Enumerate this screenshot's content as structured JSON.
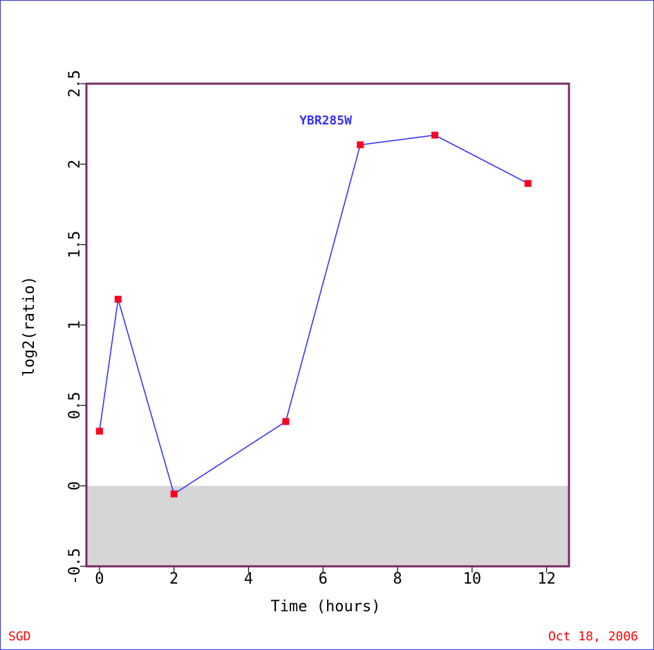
{
  "chart_data": {
    "type": "line",
    "title": "YBR285W",
    "xlabel": "Time (hours)",
    "ylabel": "log2(ratio)",
    "xlim": [
      -0.35,
      12.6
    ],
    "ylim": [
      -0.5,
      2.5
    ],
    "xticks": [
      0,
      2,
      4,
      6,
      8,
      10,
      12
    ],
    "xtick_labels": [
      "0",
      "2",
      "4",
      "6",
      "8",
      "10",
      "12"
    ],
    "yticks": [
      -0.5,
      0,
      0.5,
      1,
      1.5,
      2,
      2.5
    ],
    "ytick_labels": [
      "-0.5",
      "0",
      "0.5",
      "1",
      "1.5",
      "2",
      "2.5"
    ],
    "grid": false,
    "series": [
      {
        "x": [
          0,
          0.5,
          2,
          5,
          7,
          9,
          11.5
        ],
        "y": [
          0.34,
          1.16,
          -0.05,
          0.4,
          2.12,
          2.18,
          1.88
        ]
      }
    ],
    "colors": {
      "line": "#3333ff",
      "marker": "#ff0022",
      "frame": "#7a2862",
      "negative_band": "#d6d6d6",
      "title": "#3333ff",
      "footer": "#ff0000",
      "border": "#3333cc"
    }
  },
  "footer": {
    "source": "SGD",
    "date": "Oct 18, 2006"
  }
}
